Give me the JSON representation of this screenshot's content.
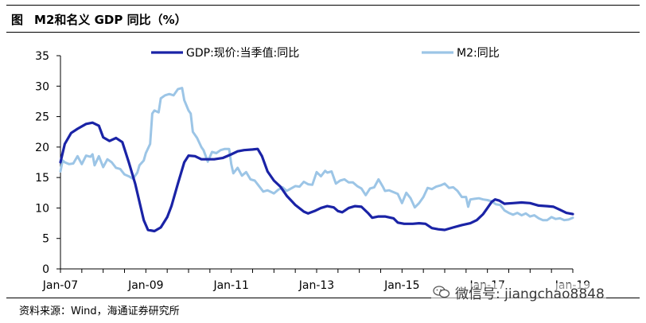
{
  "header": {
    "figure_label": "图",
    "title": "M2和名义 GDP 同比（%）"
  },
  "source_text": "资料来源：Wind，海通证券研究所",
  "watermark": {
    "text": "微信号: jiangchao8848",
    "icon": "wechat-icon"
  },
  "colors": {
    "gdp": "#1a23a6",
    "m2": "#9cc5e6",
    "axis": "#000000"
  },
  "chart_data": {
    "type": "line",
    "title": "",
    "xlabel": "",
    "ylabel": "",
    "ylim": [
      0,
      35
    ],
    "yticks": [
      0,
      5,
      10,
      15,
      20,
      25,
      30,
      35
    ],
    "xlim": [
      2007.0,
      2019.0
    ],
    "xticks": [
      {
        "x": 2007.0,
        "label": "Jan-07"
      },
      {
        "x": 2009.0,
        "label": "Jan-09"
      },
      {
        "x": 2011.0,
        "label": "Jan-11"
      },
      {
        "x": 2013.0,
        "label": "Jan-13"
      },
      {
        "x": 2015.0,
        "label": "Jan-15"
      },
      {
        "x": 2017.0,
        "label": "Jan-17"
      },
      {
        "x": 2019.0,
        "label": "Jan-19"
      }
    ],
    "grid": false,
    "legend": "top",
    "series": [
      {
        "name": "GDP:现价:当季值:同比",
        "points": [
          [
            2007.0,
            17.5
          ],
          [
            2007.1,
            20.5
          ],
          [
            2007.25,
            22.3
          ],
          [
            2007.4,
            23.0
          ],
          [
            2007.6,
            23.8
          ],
          [
            2007.75,
            24.0
          ],
          [
            2007.9,
            23.5
          ],
          [
            2008.0,
            21.6
          ],
          [
            2008.15,
            21.0
          ],
          [
            2008.3,
            21.5
          ],
          [
            2008.45,
            20.8
          ],
          [
            2008.6,
            17.5
          ],
          [
            2008.75,
            14.0
          ],
          [
            2008.85,
            11.0
          ],
          [
            2008.95,
            8.0
          ],
          [
            2009.05,
            6.4
          ],
          [
            2009.2,
            6.2
          ],
          [
            2009.35,
            6.8
          ],
          [
            2009.5,
            8.5
          ],
          [
            2009.6,
            10.3
          ],
          [
            2009.75,
            14.0
          ],
          [
            2009.9,
            17.5
          ],
          [
            2010.0,
            18.6
          ],
          [
            2010.15,
            18.5
          ],
          [
            2010.3,
            18.0
          ],
          [
            2010.45,
            18.0
          ],
          [
            2010.6,
            18.0
          ],
          [
            2010.8,
            18.2
          ],
          [
            2011.0,
            18.8
          ],
          [
            2011.15,
            19.3
          ],
          [
            2011.3,
            19.5
          ],
          [
            2011.5,
            19.6
          ],
          [
            2011.62,
            19.7
          ],
          [
            2011.72,
            18.5
          ],
          [
            2011.85,
            16.0
          ],
          [
            2012.0,
            14.5
          ],
          [
            2012.15,
            13.5
          ],
          [
            2012.3,
            12.0
          ],
          [
            2012.5,
            10.5
          ],
          [
            2012.7,
            9.4
          ],
          [
            2012.8,
            9.1
          ],
          [
            2012.95,
            9.5
          ],
          [
            2013.1,
            10.0
          ],
          [
            2013.25,
            10.3
          ],
          [
            2013.4,
            10.1
          ],
          [
            2013.5,
            9.5
          ],
          [
            2013.6,
            9.3
          ],
          [
            2013.75,
            10.0
          ],
          [
            2013.9,
            10.3
          ],
          [
            2014.05,
            10.2
          ],
          [
            2014.2,
            9.2
          ],
          [
            2014.3,
            8.4
          ],
          [
            2014.45,
            8.6
          ],
          [
            2014.6,
            8.6
          ],
          [
            2014.8,
            8.3
          ],
          [
            2014.9,
            7.6
          ],
          [
            2015.05,
            7.4
          ],
          [
            2015.25,
            7.4
          ],
          [
            2015.4,
            7.5
          ],
          [
            2015.55,
            7.4
          ],
          [
            2015.7,
            6.7
          ],
          [
            2015.85,
            6.5
          ],
          [
            2016.0,
            6.4
          ],
          [
            2016.2,
            6.8
          ],
          [
            2016.4,
            7.2
          ],
          [
            2016.6,
            7.5
          ],
          [
            2016.75,
            8.0
          ],
          [
            2016.9,
            9.0
          ],
          [
            2017.0,
            10.0
          ],
          [
            2017.1,
            11.0
          ],
          [
            2017.18,
            11.4
          ],
          [
            2017.28,
            11.2
          ],
          [
            2017.4,
            10.7
          ],
          [
            2017.6,
            10.8
          ],
          [
            2017.8,
            10.9
          ],
          [
            2018.0,
            10.8
          ],
          [
            2018.2,
            10.4
          ],
          [
            2018.4,
            10.3
          ],
          [
            2018.55,
            10.2
          ],
          [
            2018.7,
            9.7
          ],
          [
            2018.85,
            9.2
          ],
          [
            2019.0,
            9.0
          ]
        ]
      },
      {
        "name": "M2:同比",
        "points": [
          [
            2007.0,
            16.0
          ],
          [
            2007.05,
            17.8
          ],
          [
            2007.1,
            17.5
          ],
          [
            2007.2,
            17.2
          ],
          [
            2007.3,
            17.3
          ],
          [
            2007.4,
            18.5
          ],
          [
            2007.5,
            17.2
          ],
          [
            2007.6,
            18.6
          ],
          [
            2007.7,
            18.4
          ],
          [
            2007.75,
            18.8
          ],
          [
            2007.8,
            17.0
          ],
          [
            2007.9,
            18.5
          ],
          [
            2008.0,
            16.7
          ],
          [
            2008.1,
            18.0
          ],
          [
            2008.2,
            17.5
          ],
          [
            2008.3,
            16.6
          ],
          [
            2008.4,
            16.4
          ],
          [
            2008.5,
            15.5
          ],
          [
            2008.6,
            15.2
          ],
          [
            2008.7,
            14.8
          ],
          [
            2008.8,
            15.8
          ],
          [
            2008.85,
            17.0
          ],
          [
            2008.95,
            17.8
          ],
          [
            2009.0,
            19.0
          ],
          [
            2009.1,
            20.5
          ],
          [
            2009.15,
            25.5
          ],
          [
            2009.2,
            26.0
          ],
          [
            2009.3,
            25.7
          ],
          [
            2009.35,
            28.0
          ],
          [
            2009.45,
            28.5
          ],
          [
            2009.55,
            28.7
          ],
          [
            2009.65,
            28.5
          ],
          [
            2009.75,
            29.5
          ],
          [
            2009.85,
            29.7
          ],
          [
            2009.9,
            27.7
          ],
          [
            2010.0,
            26.0
          ],
          [
            2010.05,
            25.5
          ],
          [
            2010.1,
            22.5
          ],
          [
            2010.2,
            21.5
          ],
          [
            2010.3,
            20.0
          ],
          [
            2010.35,
            19.5
          ],
          [
            2010.45,
            17.6
          ],
          [
            2010.55,
            19.2
          ],
          [
            2010.65,
            19.0
          ],
          [
            2010.75,
            19.5
          ],
          [
            2010.85,
            19.7
          ],
          [
            2010.95,
            19.7
          ],
          [
            2011.0,
            17.2
          ],
          [
            2011.05,
            15.7
          ],
          [
            2011.15,
            16.6
          ],
          [
            2011.25,
            15.3
          ],
          [
            2011.35,
            15.9
          ],
          [
            2011.45,
            14.7
          ],
          [
            2011.55,
            14.5
          ],
          [
            2011.65,
            13.6
          ],
          [
            2011.75,
            12.7
          ],
          [
            2011.85,
            12.9
          ],
          [
            2012.0,
            12.4
          ],
          [
            2012.1,
            13.0
          ],
          [
            2012.2,
            13.4
          ],
          [
            2012.3,
            12.8
          ],
          [
            2012.4,
            13.2
          ],
          [
            2012.5,
            13.6
          ],
          [
            2012.6,
            13.5
          ],
          [
            2012.7,
            14.3
          ],
          [
            2012.8,
            13.9
          ],
          [
            2012.9,
            13.8
          ],
          [
            2013.0,
            15.9
          ],
          [
            2013.1,
            15.2
          ],
          [
            2013.2,
            16.1
          ],
          [
            2013.25,
            15.8
          ],
          [
            2013.35,
            16.0
          ],
          [
            2013.45,
            14.0
          ],
          [
            2013.55,
            14.5
          ],
          [
            2013.65,
            14.7
          ],
          [
            2013.75,
            14.2
          ],
          [
            2013.85,
            14.2
          ],
          [
            2013.95,
            13.6
          ],
          [
            2014.05,
            13.2
          ],
          [
            2014.15,
            12.1
          ],
          [
            2014.25,
            13.2
          ],
          [
            2014.35,
            13.4
          ],
          [
            2014.45,
            14.7
          ],
          [
            2014.55,
            13.5
          ],
          [
            2014.6,
            12.8
          ],
          [
            2014.7,
            12.9
          ],
          [
            2014.8,
            12.6
          ],
          [
            2014.9,
            12.3
          ],
          [
            2015.0,
            10.8
          ],
          [
            2015.1,
            12.5
          ],
          [
            2015.2,
            11.6
          ],
          [
            2015.3,
            10.1
          ],
          [
            2015.4,
            10.8
          ],
          [
            2015.5,
            11.8
          ],
          [
            2015.6,
            13.3
          ],
          [
            2015.7,
            13.1
          ],
          [
            2015.8,
            13.5
          ],
          [
            2015.9,
            13.7
          ],
          [
            2016.0,
            14.0
          ],
          [
            2016.1,
            13.3
          ],
          [
            2016.2,
            13.4
          ],
          [
            2016.3,
            12.8
          ],
          [
            2016.4,
            11.8
          ],
          [
            2016.5,
            11.8
          ],
          [
            2016.55,
            10.2
          ],
          [
            2016.6,
            11.4
          ],
          [
            2016.7,
            11.5
          ],
          [
            2016.8,
            11.6
          ],
          [
            2016.9,
            11.4
          ],
          [
            2017.0,
            11.3
          ],
          [
            2017.1,
            11.1
          ],
          [
            2017.2,
            10.6
          ],
          [
            2017.3,
            10.5
          ],
          [
            2017.4,
            9.6
          ],
          [
            2017.5,
            9.2
          ],
          [
            2017.6,
            8.9
          ],
          [
            2017.7,
            9.2
          ],
          [
            2017.8,
            8.8
          ],
          [
            2017.9,
            9.1
          ],
          [
            2018.0,
            8.6
          ],
          [
            2018.1,
            8.8
          ],
          [
            2018.2,
            8.3
          ],
          [
            2018.3,
            8.0
          ],
          [
            2018.4,
            8.0
          ],
          [
            2018.5,
            8.5
          ],
          [
            2018.6,
            8.2
          ],
          [
            2018.7,
            8.3
          ],
          [
            2018.8,
            8.0
          ],
          [
            2018.9,
            8.1
          ],
          [
            2019.0,
            8.4
          ]
        ]
      }
    ]
  }
}
